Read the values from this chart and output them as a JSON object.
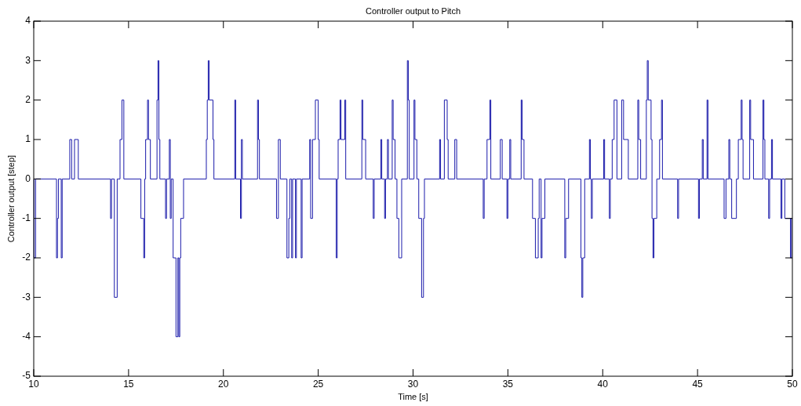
{
  "chart_data": {
    "type": "step",
    "title": "Controller output to Pitch",
    "xlabel": "Time [s]",
    "ylabel": "Controller output [step]",
    "xlim": [
      10,
      50
    ],
    "xticks": [
      10,
      15,
      20,
      25,
      30,
      35,
      40,
      45,
      50
    ],
    "ylim": [
      -5,
      4
    ],
    "yticks": [
      -5,
      -4,
      -3,
      -2,
      -1,
      0,
      1,
      2,
      3,
      4
    ],
    "grid": false,
    "line_style": "solid",
    "marker": "none",
    "series": [
      {
        "color": "#1a1aaa",
        "x": [
          10,
          10.02,
          10.1,
          11.2,
          11.25,
          11.3,
          11.45,
          11.5,
          11.9,
          12.0,
          12.15,
          12.35,
          14.05,
          14.1,
          14.25,
          14.4,
          14.55,
          14.65,
          14.75,
          15.65,
          15.8,
          15.85,
          15.9,
          16.0,
          16.05,
          16.15,
          16.5,
          16.55,
          16.6,
          16.65,
          16.95,
          17.0,
          17.15,
          17.2,
          17.25,
          17.35,
          17.5,
          17.6,
          17.65,
          17.7,
          17.75,
          17.9,
          19.1,
          19.15,
          19.2,
          19.25,
          19.45,
          19.5,
          20.6,
          20.65,
          20.9,
          20.95,
          21.0,
          21.8,
          21.85,
          21.9,
          22.8,
          22.9,
          23.0,
          23.35,
          23.45,
          23.5,
          23.6,
          23.65,
          23.8,
          23.85,
          24.1,
          24.15,
          24.55,
          24.6,
          24.7,
          24.85,
          25.0,
          25.05,
          25.95,
          26.0,
          26.05,
          26.15,
          26.2,
          26.4,
          26.45,
          27.3,
          27.35,
          27.5,
          27.9,
          27.95,
          28.3,
          28.35,
          28.5,
          28.55,
          28.65,
          28.7,
          28.9,
          28.95,
          29.05,
          29.15,
          29.25,
          29.4,
          29.7,
          29.75,
          29.8,
          30.05,
          30.1,
          30.2,
          30.3,
          30.45,
          30.55,
          30.6,
          31.4,
          31.45,
          31.65,
          31.8,
          31.85,
          32.2,
          32.3,
          33.7,
          33.75,
          33.9,
          34.05,
          34.1,
          34.6,
          34.7,
          34.95,
          35.0,
          35.1,
          35.15,
          35.7,
          35.75,
          35.85,
          36.3,
          36.45,
          36.6,
          36.65,
          36.75,
          36.8,
          36.95,
          38.0,
          38.05,
          38.2,
          38.85,
          38.9,
          38.95,
          39.05,
          39.3,
          39.35,
          39.4,
          39.45,
          40.05,
          40.1,
          40.35,
          40.4,
          40.5,
          40.6,
          40.75,
          41.0,
          41.1,
          41.35,
          41.85,
          41.9,
          42.0,
          42.3,
          42.35,
          42.4,
          42.55,
          42.6,
          42.65,
          42.7,
          42.85,
          43.0,
          43.1,
          43.15,
          43.95,
          44.0,
          45.05,
          45.1,
          45.25,
          45.3,
          45.5,
          45.55,
          46.4,
          46.5,
          46.65,
          46.7,
          46.8,
          47.05,
          47.15,
          47.3,
          47.35,
          47.4,
          47.75,
          47.8,
          47.95,
          48.45,
          48.5,
          48.55,
          48.75,
          48.8,
          48.9,
          48.95,
          49.4,
          49.45,
          49.6,
          49.9,
          49.95,
          50
        ],
        "values": [
          0,
          -2,
          0,
          -2,
          -1,
          0,
          -2,
          0,
          1,
          0,
          1,
          0,
          -1,
          0,
          -3,
          0,
          1,
          2,
          0,
          -1,
          -2,
          0,
          1,
          2,
          1,
          0,
          2,
          3,
          1,
          0,
          -1,
          0,
          1,
          -1,
          0,
          -2,
          -4,
          -2,
          -4,
          -2,
          -1,
          0,
          1,
          2,
          3,
          2,
          1,
          0,
          2,
          0,
          -1,
          1,
          0,
          2,
          1,
          0,
          -1,
          1,
          0,
          -2,
          -1,
          0,
          -2,
          0,
          -2,
          0,
          -2,
          0,
          1,
          -1,
          1,
          2,
          1,
          0,
          -2,
          0,
          1,
          2,
          1,
          2,
          0,
          2,
          1,
          0,
          -1,
          0,
          1,
          0,
          -1,
          0,
          1,
          0,
          2,
          1,
          0,
          -1,
          -2,
          0,
          3,
          2,
          0,
          2,
          1,
          0,
          -1,
          -3,
          -1,
          0,
          1,
          0,
          2,
          1,
          0,
          1,
          0,
          -1,
          0,
          1,
          2,
          0,
          1,
          0,
          -1,
          0,
          1,
          0,
          2,
          1,
          0,
          -1,
          -2,
          -1,
          0,
          -2,
          -1,
          0,
          -2,
          -1,
          0,
          -2,
          -3,
          -2,
          0,
          1,
          0,
          -1,
          0,
          1,
          0,
          -1,
          0,
          1,
          2,
          0,
          2,
          1,
          0,
          2,
          1,
          0,
          2,
          3,
          2,
          1,
          -1,
          -2,
          -1,
          0,
          1,
          2,
          0,
          -1,
          0,
          -1,
          0,
          1,
          0,
          2,
          0,
          -1,
          0,
          1,
          0,
          -1,
          0,
          1,
          2,
          1,
          0,
          2,
          1,
          0,
          2,
          1,
          0,
          -1,
          0,
          1,
          0,
          -1,
          0,
          -1,
          -2,
          -1,
          -1
        ]
      }
    ]
  }
}
